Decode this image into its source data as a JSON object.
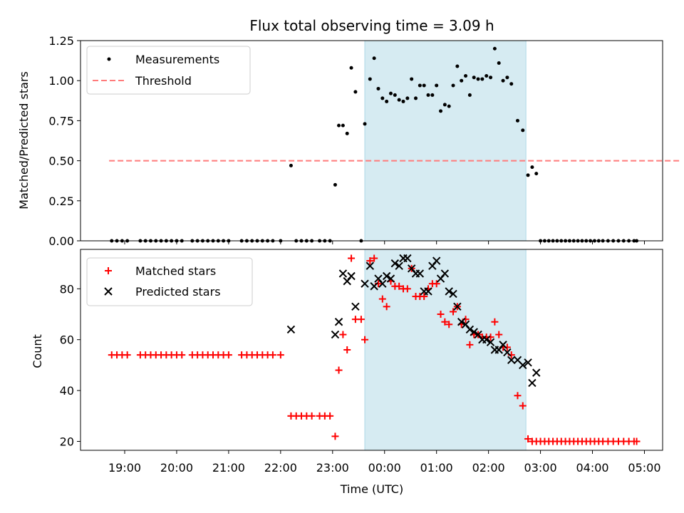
{
  "chart_data": [
    {
      "type": "scatter",
      "title": "Flux total observing time = 3.09 h",
      "ylabel": "Matched/Predicted stars",
      "xlabel": "",
      "ylim": [
        0,
        1.25
      ],
      "yticks": [
        "0.00",
        "0.25",
        "0.50",
        "0.75",
        "1.00",
        "1.25"
      ],
      "shaded_span_hours": [
        23.62,
        26.72
      ],
      "legend": {
        "position": "top-left",
        "entries": [
          "Measurements",
          "Threshold"
        ]
      },
      "threshold": {
        "name": "Threshold",
        "value": 0.5,
        "x_range_hours": [
          18.7,
          29.7
        ],
        "color": "#ff7b7b"
      },
      "series": [
        {
          "name": "Measurements",
          "color": "#000000",
          "points": [
            [
              18.75,
              0
            ],
            [
              18.85,
              0
            ],
            [
              18.95,
              0
            ],
            [
              19.05,
              0
            ],
            [
              19.3,
              0
            ],
            [
              19.4,
              0
            ],
            [
              19.5,
              0
            ],
            [
              19.6,
              0
            ],
            [
              19.7,
              0
            ],
            [
              19.8,
              0
            ],
            [
              19.9,
              0
            ],
            [
              20.0,
              0
            ],
            [
              20.1,
              0
            ],
            [
              20.3,
              0
            ],
            [
              20.4,
              0
            ],
            [
              20.5,
              0
            ],
            [
              20.6,
              0
            ],
            [
              20.7,
              0
            ],
            [
              20.8,
              0
            ],
            [
              20.9,
              0
            ],
            [
              21.0,
              0
            ],
            [
              21.25,
              0
            ],
            [
              21.35,
              0
            ],
            [
              21.45,
              0
            ],
            [
              21.55,
              0
            ],
            [
              21.65,
              0
            ],
            [
              21.75,
              0
            ],
            [
              21.85,
              0
            ],
            [
              22.0,
              0
            ],
            [
              22.2,
              0.47
            ],
            [
              22.3,
              0
            ],
            [
              22.4,
              0
            ],
            [
              22.5,
              0
            ],
            [
              22.6,
              0
            ],
            [
              22.75,
              0
            ],
            [
              22.85,
              0
            ],
            [
              22.95,
              0
            ],
            [
              23.05,
              0.35
            ],
            [
              23.12,
              0.72
            ],
            [
              23.2,
              0.72
            ],
            [
              23.28,
              0.67
            ],
            [
              23.36,
              1.08
            ],
            [
              23.44,
              0.93
            ],
            [
              23.55,
              0
            ],
            [
              23.62,
              0.73
            ],
            [
              23.72,
              1.01
            ],
            [
              23.8,
              1.14
            ],
            [
              23.88,
              0.95
            ],
            [
              23.96,
              0.89
            ],
            [
              24.04,
              0.87
            ],
            [
              24.12,
              0.92
            ],
            [
              24.2,
              0.91
            ],
            [
              24.28,
              0.88
            ],
            [
              24.36,
              0.87
            ],
            [
              24.44,
              0.89
            ],
            [
              24.52,
              1.01
            ],
            [
              24.6,
              0.89
            ],
            [
              24.68,
              0.97
            ],
            [
              24.76,
              0.97
            ],
            [
              24.84,
              0.91
            ],
            [
              24.92,
              0.91
            ],
            [
              25.0,
              0.97
            ],
            [
              25.08,
              0.81
            ],
            [
              25.16,
              0.85
            ],
            [
              25.24,
              0.84
            ],
            [
              25.32,
              0.97
            ],
            [
              25.4,
              1.09
            ],
            [
              25.48,
              1.0
            ],
            [
              25.56,
              1.03
            ],
            [
              25.64,
              0.91
            ],
            [
              25.72,
              1.02
            ],
            [
              25.8,
              1.01
            ],
            [
              25.88,
              1.01
            ],
            [
              25.96,
              1.03
            ],
            [
              26.04,
              1.02
            ],
            [
              26.12,
              1.2
            ],
            [
              26.2,
              1.11
            ],
            [
              26.28,
              1.0
            ],
            [
              26.36,
              1.02
            ],
            [
              26.44,
              0.98
            ],
            [
              26.56,
              0.75
            ],
            [
              26.66,
              0.69
            ],
            [
              26.76,
              0.41
            ],
            [
              26.84,
              0.46
            ],
            [
              26.92,
              0.42
            ],
            [
              27.0,
              0
            ],
            [
              27.08,
              0
            ],
            [
              27.16,
              0
            ],
            [
              27.24,
              0
            ],
            [
              27.32,
              0
            ],
            [
              27.4,
              0
            ],
            [
              27.48,
              0
            ],
            [
              27.56,
              0
            ],
            [
              27.64,
              0
            ],
            [
              27.72,
              0
            ],
            [
              27.8,
              0
            ],
            [
              27.88,
              0
            ],
            [
              27.96,
              0
            ],
            [
              28.04,
              0
            ],
            [
              28.12,
              0
            ],
            [
              28.2,
              0
            ],
            [
              28.3,
              0
            ],
            [
              28.4,
              0
            ],
            [
              28.5,
              0
            ],
            [
              28.6,
              0
            ],
            [
              28.7,
              0
            ],
            [
              28.8,
              0
            ],
            [
              28.85,
              0
            ]
          ]
        }
      ]
    },
    {
      "type": "scatter",
      "title": "",
      "ylabel": "Count",
      "xlabel": "Time (UTC)",
      "ylim": [
        16.5,
        95.5
      ],
      "yticks": [
        "20",
        "40",
        "60",
        "80"
      ],
      "xticks": [
        "19:00",
        "20:00",
        "21:00",
        "22:00",
        "23:00",
        "00:00",
        "01:00",
        "02:00",
        "03:00",
        "04:00",
        "05:00"
      ],
      "xlim_hours": [
        18.15,
        29.35
      ],
      "shaded_span_hours": [
        23.62,
        26.72
      ],
      "legend": {
        "position": "top-left",
        "entries": [
          "Matched stars",
          "Predicted stars"
        ]
      },
      "series": [
        {
          "name": "Matched stars",
          "marker": "plus",
          "color": "#ff0000",
          "points": [
            [
              18.75,
              54
            ],
            [
              18.85,
              54
            ],
            [
              18.95,
              54
            ],
            [
              19.05,
              54
            ],
            [
              19.3,
              54
            ],
            [
              19.4,
              54
            ],
            [
              19.5,
              54
            ],
            [
              19.6,
              54
            ],
            [
              19.7,
              54
            ],
            [
              19.8,
              54
            ],
            [
              19.9,
              54
            ],
            [
              20.0,
              54
            ],
            [
              20.1,
              54
            ],
            [
              20.3,
              54
            ],
            [
              20.4,
              54
            ],
            [
              20.5,
              54
            ],
            [
              20.6,
              54
            ],
            [
              20.7,
              54
            ],
            [
              20.8,
              54
            ],
            [
              20.9,
              54
            ],
            [
              21.0,
              54
            ],
            [
              21.25,
              54
            ],
            [
              21.35,
              54
            ],
            [
              21.45,
              54
            ],
            [
              21.55,
              54
            ],
            [
              21.65,
              54
            ],
            [
              21.75,
              54
            ],
            [
              21.85,
              54
            ],
            [
              22.0,
              54
            ],
            [
              22.2,
              30
            ],
            [
              22.3,
              30
            ],
            [
              22.4,
              30
            ],
            [
              22.5,
              30
            ],
            [
              22.6,
              30
            ],
            [
              22.75,
              30
            ],
            [
              22.85,
              30
            ],
            [
              22.95,
              30
            ],
            [
              23.05,
              22
            ],
            [
              23.12,
              48
            ],
            [
              23.2,
              62
            ],
            [
              23.28,
              56
            ],
            [
              23.36,
              92
            ],
            [
              23.44,
              68
            ],
            [
              23.55,
              68
            ],
            [
              23.62,
              60
            ],
            [
              23.72,
              91
            ],
            [
              23.8,
              92
            ],
            [
              23.88,
              82
            ],
            [
              23.96,
              76
            ],
            [
              24.04,
              73
            ],
            [
              24.12,
              83
            ],
            [
              24.2,
              81
            ],
            [
              24.28,
              81
            ],
            [
              24.36,
              80
            ],
            [
              24.44,
              80
            ],
            [
              24.52,
              88
            ],
            [
              24.6,
              77
            ],
            [
              24.68,
              77
            ],
            [
              24.76,
              77
            ],
            [
              24.84,
              80
            ],
            [
              24.92,
              82
            ],
            [
              25.0,
              82
            ],
            [
              25.08,
              70
            ],
            [
              25.16,
              67
            ],
            [
              25.24,
              66
            ],
            [
              25.32,
              71
            ],
            [
              25.4,
              73
            ],
            [
              25.48,
              66
            ],
            [
              25.56,
              68
            ],
            [
              25.64,
              58
            ],
            [
              25.72,
              62
            ],
            [
              25.8,
              62
            ],
            [
              25.88,
              61
            ],
            [
              25.96,
              61
            ],
            [
              26.04,
              61
            ],
            [
              26.12,
              67
            ],
            [
              26.2,
              62
            ],
            [
              26.28,
              57
            ],
            [
              26.36,
              57
            ],
            [
              26.44,
              54
            ],
            [
              26.56,
              38
            ],
            [
              26.66,
              34
            ],
            [
              26.76,
              21
            ],
            [
              26.84,
              20
            ],
            [
              26.92,
              20
            ],
            [
              27.0,
              20
            ],
            [
              27.08,
              20
            ],
            [
              27.16,
              20
            ],
            [
              27.24,
              20
            ],
            [
              27.32,
              20
            ],
            [
              27.4,
              20
            ],
            [
              27.48,
              20
            ],
            [
              27.56,
              20
            ],
            [
              27.64,
              20
            ],
            [
              27.72,
              20
            ],
            [
              27.8,
              20
            ],
            [
              27.88,
              20
            ],
            [
              27.96,
              20
            ],
            [
              28.04,
              20
            ],
            [
              28.12,
              20
            ],
            [
              28.2,
              20
            ],
            [
              28.3,
              20
            ],
            [
              28.4,
              20
            ],
            [
              28.5,
              20
            ],
            [
              28.6,
              20
            ],
            [
              28.7,
              20
            ],
            [
              28.8,
              20
            ],
            [
              28.85,
              20
            ]
          ]
        },
        {
          "name": "Predicted stars",
          "marker": "x",
          "color": "#000000",
          "points": [
            [
              22.2,
              64
            ],
            [
              23.05,
              62
            ],
            [
              23.12,
              67
            ],
            [
              23.2,
              86
            ],
            [
              23.28,
              83
            ],
            [
              23.36,
              85
            ],
            [
              23.44,
              73
            ],
            [
              23.62,
              82
            ],
            [
              23.72,
              89
            ],
            [
              23.8,
              81
            ],
            [
              23.88,
              84
            ],
            [
              23.96,
              82
            ],
            [
              24.04,
              85
            ],
            [
              24.12,
              84
            ],
            [
              24.2,
              90
            ],
            [
              24.28,
              89
            ],
            [
              24.36,
              92
            ],
            [
              24.44,
              92
            ],
            [
              24.52,
              88
            ],
            [
              24.6,
              86
            ],
            [
              24.68,
              86
            ],
            [
              24.76,
              79
            ],
            [
              24.84,
              79
            ],
            [
              24.92,
              89
            ],
            [
              25.0,
              91
            ],
            [
              25.08,
              84
            ],
            [
              25.16,
              86
            ],
            [
              25.24,
              79
            ],
            [
              25.32,
              78
            ],
            [
              25.4,
              73
            ],
            [
              25.48,
              67
            ],
            [
              25.56,
              66
            ],
            [
              25.64,
              64
            ],
            [
              25.72,
              63
            ],
            [
              25.8,
              62
            ],
            [
              25.88,
              60
            ],
            [
              25.96,
              60
            ],
            [
              26.04,
              59
            ],
            [
              26.12,
              56
            ],
            [
              26.2,
              56
            ],
            [
              26.28,
              58
            ],
            [
              26.36,
              55
            ],
            [
              26.44,
              52
            ],
            [
              26.56,
              52
            ],
            [
              26.66,
              50
            ],
            [
              26.76,
              51
            ],
            [
              26.84,
              43
            ],
            [
              26.92,
              47
            ]
          ]
        }
      ]
    }
  ]
}
